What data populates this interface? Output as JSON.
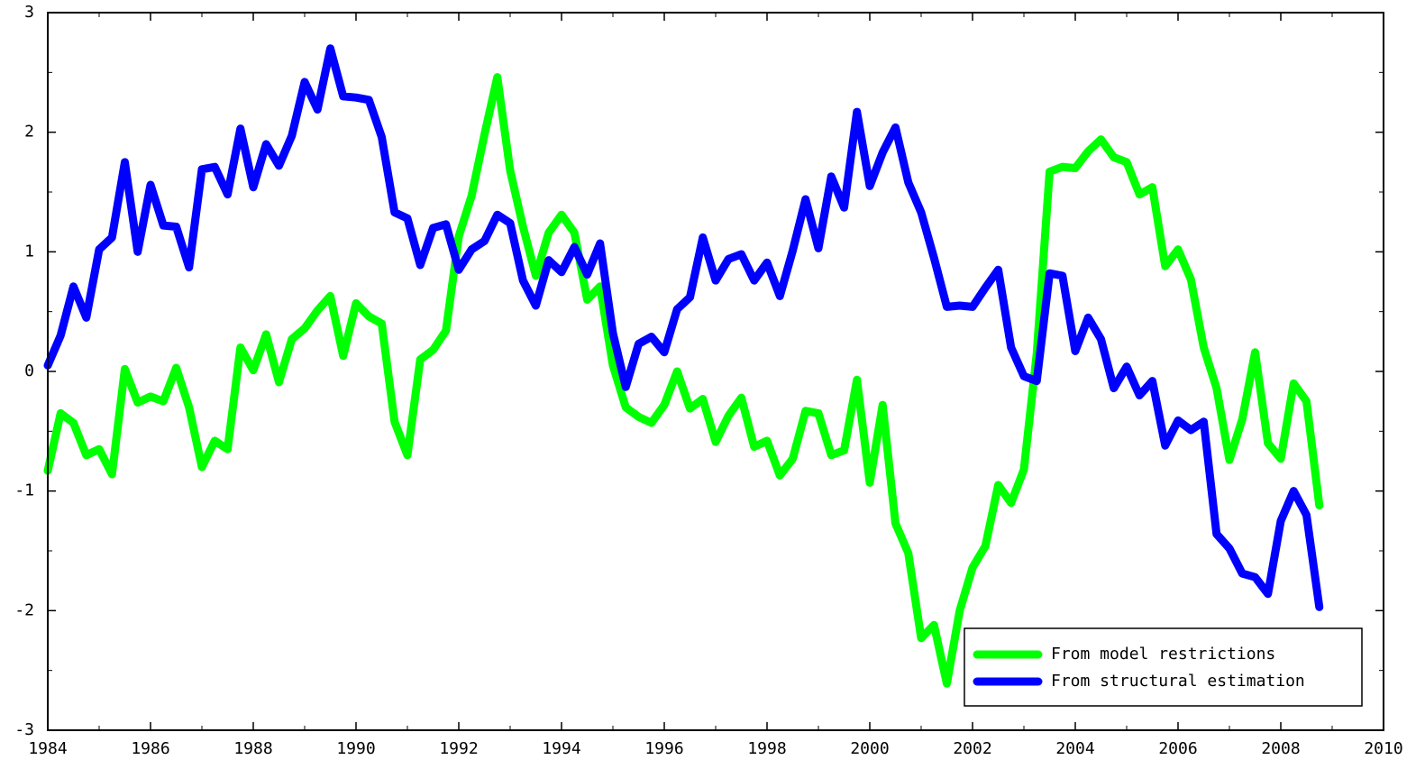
{
  "chart_data": {
    "type": "line",
    "x": [
      1984,
      1984.25,
      1984.5,
      1984.75,
      1985,
      1985.25,
      1985.5,
      1985.75,
      1986,
      1986.25,
      1986.5,
      1986.75,
      1987,
      1987.25,
      1987.5,
      1987.75,
      1988,
      1988.25,
      1988.5,
      1988.75,
      1989,
      1989.25,
      1989.5,
      1989.75,
      1990,
      1990.25,
      1990.5,
      1990.75,
      1991,
      1991.25,
      1991.5,
      1991.75,
      1992,
      1992.25,
      1992.5,
      1992.75,
      1993,
      1993.25,
      1993.5,
      1993.75,
      1994,
      1994.25,
      1994.5,
      1994.75,
      1995,
      1995.25,
      1995.5,
      1995.75,
      1996,
      1996.25,
      1996.5,
      1996.75,
      1997,
      1997.25,
      1997.5,
      1997.75,
      1998,
      1998.25,
      1998.5,
      1998.75,
      1999,
      1999.25,
      1999.5,
      1999.75,
      2000,
      2000.25,
      2000.5,
      2000.75,
      2001,
      2001.25,
      2001.5,
      2001.75,
      2002,
      2002.25,
      2002.5,
      2002.75,
      2003,
      2003.25,
      2003.5,
      2003.75,
      2004,
      2004.25,
      2004.5,
      2004.75,
      2005,
      2005.25,
      2005.5,
      2005.75,
      2006,
      2006.25,
      2006.5,
      2006.75,
      2007,
      2007.25,
      2007.5,
      2007.75,
      2008,
      2008.25,
      2008.5,
      2008.75
    ],
    "series": [
      {
        "name": "From model restrictions",
        "color": "#00ff00",
        "values": [
          -0.83,
          -0.35,
          -0.43,
          -0.7,
          -0.65,
          -0.86,
          0.02,
          -0.26,
          -0.21,
          -0.25,
          0.03,
          -0.3,
          -0.8,
          -0.58,
          -0.65,
          0.2,
          0.01,
          0.31,
          -0.09,
          0.27,
          0.36,
          0.51,
          0.63,
          0.13,
          0.57,
          0.46,
          0.4,
          -0.42,
          -0.7,
          0.1,
          0.18,
          0.34,
          1.13,
          1.47,
          1.98,
          2.46,
          1.68,
          1.21,
          0.8,
          1.16,
          1.31,
          1.16,
          0.6,
          0.71,
          0.05,
          -0.3,
          -0.38,
          -0.43,
          -0.28,
          0.0,
          -0.31,
          -0.23,
          -0.59,
          -0.37,
          -0.22,
          -0.63,
          -0.58,
          -0.87,
          -0.73,
          -0.33,
          -0.35,
          -0.7,
          -0.66,
          -0.07,
          -0.93,
          -0.28,
          -1.27,
          -1.52,
          -2.23,
          -2.12,
          -2.61,
          -2.0,
          -1.64,
          -1.46,
          -0.95,
          -1.1,
          -0.82,
          0.15,
          1.67,
          1.71,
          1.7,
          1.84,
          1.94,
          1.79,
          1.75,
          1.48,
          1.54,
          0.88,
          1.02,
          0.77,
          0.2,
          -0.14,
          -0.74,
          -0.4,
          0.16,
          -0.6,
          -0.73,
          -0.1,
          -0.25,
          -1.12
        ]
      },
      {
        "name": "From structural estimation",
        "color": "#0000ff",
        "values": [
          0.05,
          0.3,
          0.71,
          0.45,
          1.02,
          1.12,
          1.75,
          1.0,
          1.56,
          1.22,
          1.21,
          0.87,
          1.69,
          1.71,
          1.48,
          2.03,
          1.54,
          1.9,
          1.72,
          1.97,
          2.42,
          2.19,
          2.7,
          2.3,
          2.29,
          2.27,
          1.96,
          1.33,
          1.28,
          0.89,
          1.2,
          1.23,
          0.85,
          1.02,
          1.09,
          1.31,
          1.24,
          0.76,
          0.55,
          0.93,
          0.83,
          1.04,
          0.81,
          1.07,
          0.32,
          -0.13,
          0.23,
          0.29,
          0.16,
          0.52,
          0.62,
          1.12,
          0.76,
          0.94,
          0.98,
          0.76,
          0.91,
          0.63,
          1.01,
          1.44,
          1.03,
          1.63,
          1.37,
          2.17,
          1.55,
          1.83,
          2.04,
          1.58,
          1.33,
          0.95,
          0.54,
          0.55,
          0.54,
          0.7,
          0.85,
          0.2,
          -0.04,
          -0.08,
          0.82,
          0.8,
          0.17,
          0.45,
          0.27,
          -0.14,
          0.04,
          -0.2,
          -0.08,
          -0.62,
          -0.41,
          -0.49,
          -0.42,
          -1.36,
          -1.48,
          -1.69,
          -1.72,
          -1.86,
          -1.25,
          -1.0,
          -1.2,
          -1.97
        ]
      }
    ],
    "xlim": [
      1984,
      2010
    ],
    "xticks": [
      1984,
      1986,
      1988,
      1990,
      1992,
      1994,
      1996,
      1998,
      2000,
      2002,
      2004,
      2006,
      2008,
      2010
    ],
    "ylim": [
      -3,
      3
    ],
    "yticks": [
      -3,
      -2,
      -1,
      0,
      1,
      2,
      3
    ],
    "legend": "lower right"
  }
}
